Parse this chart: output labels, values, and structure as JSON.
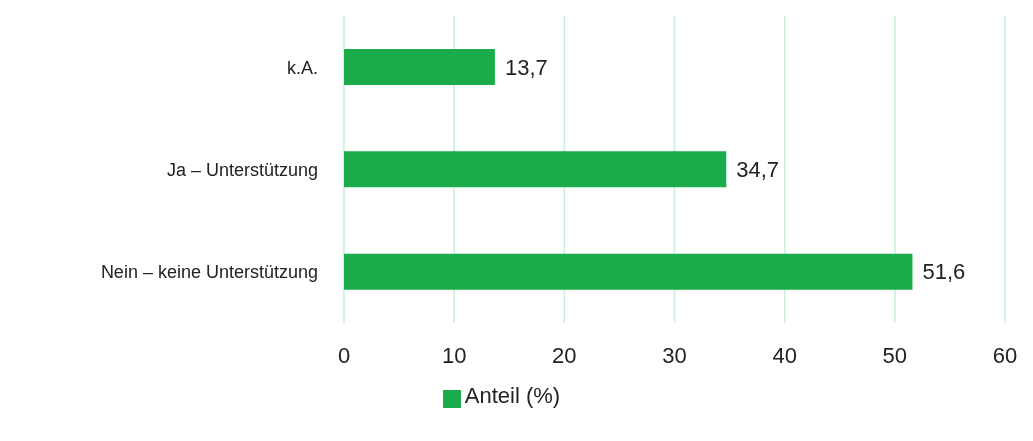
{
  "chart_data": {
    "type": "bar",
    "orientation": "horizontal",
    "categories": [
      "k.A.",
      "Ja – Unterstützung",
      "Nein – keine Unterstützung"
    ],
    "series": [
      {
        "name": "Anteil (%)",
        "color": "#1aab4b",
        "values": [
          13.7,
          34.7,
          51.6
        ],
        "value_labels": [
          "13,7",
          "34,7",
          "51,6"
        ]
      }
    ],
    "xlim": [
      0,
      60
    ],
    "xticks": [
      0,
      10,
      20,
      30,
      40,
      50,
      60
    ],
    "grid": "x",
    "legend": "bottom"
  }
}
